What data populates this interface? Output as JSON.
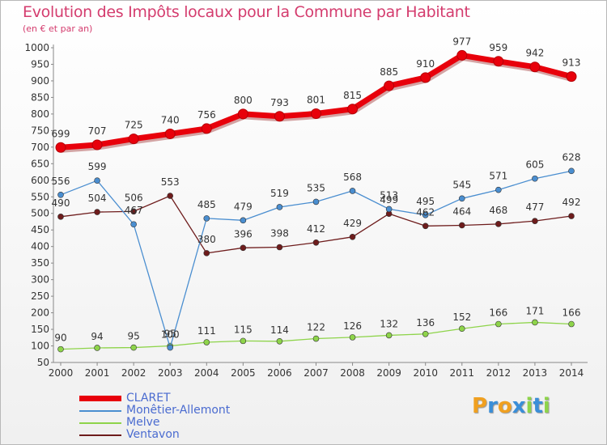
{
  "chart_data": {
    "type": "line",
    "title": "Evolution des Impôts locaux pour la Commune par Habitant",
    "subtitle": "(en € et par an)",
    "x": [
      "2000",
      "2001",
      "2002",
      "2003",
      "2004",
      "2005",
      "2006",
      "2007",
      "2008",
      "2009",
      "2010",
      "2011",
      "2012",
      "2013",
      "2014"
    ],
    "ylim": [
      50,
      1000
    ],
    "yticks": [
      50,
      100,
      150,
      200,
      250,
      300,
      350,
      400,
      450,
      500,
      550,
      600,
      650,
      700,
      750,
      800,
      850,
      900,
      950,
      1000
    ],
    "grid": false,
    "legend_position": "bottom-left",
    "series": [
      {
        "name": "CLARET",
        "color": "#e8000b",
        "values": [
          699,
          707,
          725,
          740,
          756,
          800,
          793,
          801,
          815,
          885,
          910,
          977,
          959,
          942,
          913
        ]
      },
      {
        "name": "Monêtier-Allemont",
        "color": "#4a8ed0",
        "values": [
          556,
          599,
          467,
          95,
          485,
          479,
          519,
          535,
          568,
          513,
          495,
          545,
          571,
          605,
          628
        ]
      },
      {
        "name": "Melve",
        "color": "#8ed44a",
        "values": [
          90,
          94,
          95,
          100,
          111,
          115,
          114,
          122,
          126,
          132,
          136,
          152,
          166,
          171,
          166
        ]
      },
      {
        "name": "Ventavon",
        "color": "#6e1c1c",
        "values": [
          490,
          504,
          506,
          553,
          380,
          396,
          398,
          412,
          429,
          499,
          462,
          464,
          468,
          477,
          492
        ]
      }
    ]
  },
  "logo": {
    "text": "Proxiti",
    "letters": [
      {
        "ch": "P",
        "color": "#f0a020"
      },
      {
        "ch": "r",
        "color": "#3a8ed8"
      },
      {
        "ch": "o",
        "color": "#f0a020"
      },
      {
        "ch": "x",
        "color": "#3a8ed8"
      },
      {
        "ch": "i",
        "color": "#8ed44a"
      },
      {
        "ch": "t",
        "color": "#3a8ed8"
      },
      {
        "ch": "i",
        "color": "#8ed44a"
      }
    ]
  }
}
